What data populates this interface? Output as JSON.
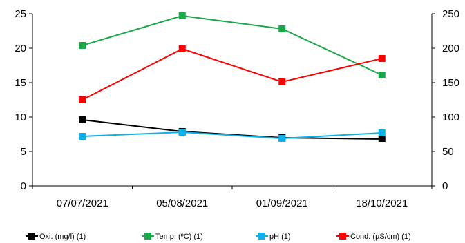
{
  "chart_data": {
    "type": "line",
    "categories": [
      "07/07/2021",
      "05/08/2021",
      "01/09/2021",
      "18/10/2021"
    ],
    "ylim": [
      0,
      25
    ],
    "y_ticks": [
      "0",
      "5",
      "10",
      "15",
      "20",
      "25"
    ],
    "y2lim": [
      0,
      250
    ],
    "y2_ticks": [
      "0",
      "50",
      "100",
      "150",
      "200",
      "250"
    ],
    "grid": false,
    "legend_position": "bottom",
    "series": [
      {
        "name": "Oxi. (mg/l) (1)",
        "axis": "left",
        "color": "#000000",
        "values": [
          9.6,
          7.9,
          7.0,
          6.8
        ]
      },
      {
        "name": "Temp. (ºC) (1)",
        "axis": "left",
        "color": "#1aa84a",
        "values": [
          20.4,
          24.7,
          22.8,
          16.1
        ]
      },
      {
        "name": "pH (1)",
        "axis": "left",
        "color": "#0fb0ea",
        "values": [
          7.2,
          7.8,
          6.9,
          7.7
        ]
      },
      {
        "name": "Cond. (µS/cm) (1)",
        "axis": "right",
        "color": "#ff0000",
        "values": [
          125,
          199,
          151,
          185
        ]
      }
    ]
  }
}
